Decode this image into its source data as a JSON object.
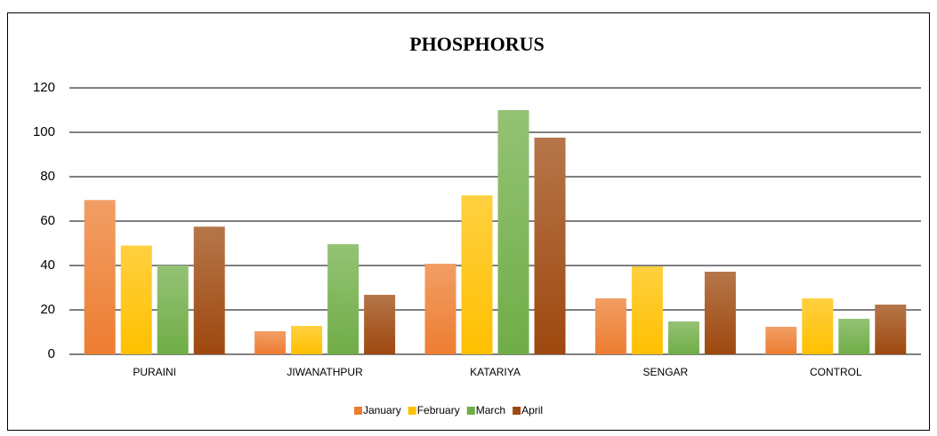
{
  "chart_data": {
    "type": "bar",
    "title": "PHOSPHORUS",
    "categories": [
      "PURAINI",
      "JIWANATHPUR",
      "KATARIYA",
      "SENGAR",
      "CONTROL"
    ],
    "series": [
      {
        "name": "January",
        "color": "#ed7d31",
        "values": [
          69.5,
          10.4,
          40.8,
          25.2,
          12.4
        ]
      },
      {
        "name": "February",
        "color": "#ffc000",
        "values": [
          49,
          12.8,
          71.6,
          39.6,
          25.2
        ]
      },
      {
        "name": "March",
        "color": "#70ad47",
        "values": [
          40,
          49.6,
          110,
          14.8,
          16
        ]
      },
      {
        "name": "April",
        "color": "#9e480e",
        "values": [
          57.5,
          26.8,
          97.6,
          37.2,
          22.4
        ]
      }
    ],
    "ylim": [
      0,
      120
    ],
    "yticks": [
      0,
      20,
      40,
      60,
      80,
      100,
      120
    ],
    "grid": true,
    "legend": "bottom"
  }
}
